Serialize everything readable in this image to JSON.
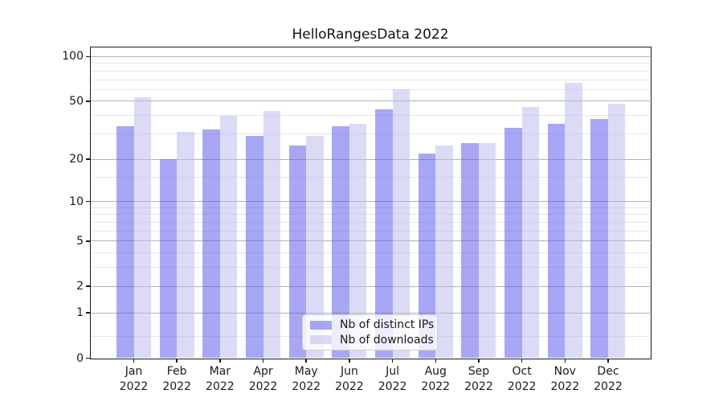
{
  "chart_data": {
    "type": "bar",
    "title": "HelloRangesData 2022",
    "categories": [
      "Jan",
      "Feb",
      "Mar",
      "Apr",
      "May",
      "Jun",
      "Jul",
      "Aug",
      "Sep",
      "Oct",
      "Nov",
      "Dec"
    ],
    "category_year_label": "2022",
    "series": [
      {
        "name": "Nb of distinct IPs",
        "color": "rgba(95,95,239,0.55)",
        "values": [
          34,
          20,
          32,
          29,
          25,
          34,
          44,
          22,
          26,
          33,
          35,
          38
        ]
      },
      {
        "name": "Nb of downloads",
        "color": "rgba(190,190,239,0.55)",
        "values": [
          53,
          31,
          40,
          43,
          29,
          35,
          60,
          25,
          26,
          46,
          67,
          48
        ]
      }
    ],
    "xlabel": "",
    "ylabel": "",
    "yscale": "log1p",
    "ylim": [
      0,
      115
    ],
    "yticks": [
      0,
      1,
      2,
      5,
      10,
      20,
      50,
      100
    ],
    "ytick_labels": [
      "0",
      "1",
      "2",
      "5",
      "10",
      "20",
      "50",
      "100"
    ],
    "minor_yticks": [
      0.4,
      3,
      4,
      6,
      7,
      8,
      9,
      15,
      30,
      40,
      60,
      70,
      80,
      90
    ],
    "grid": true,
    "grid_major_color": "#b2b2b2",
    "grid_minor_color": "#e7e7e7",
    "axis_color": "#1a1a1a",
    "legend_position": "lower center",
    "legend_entries": [
      "Nb of distinct IPs",
      "Nb of downloads"
    ]
  }
}
